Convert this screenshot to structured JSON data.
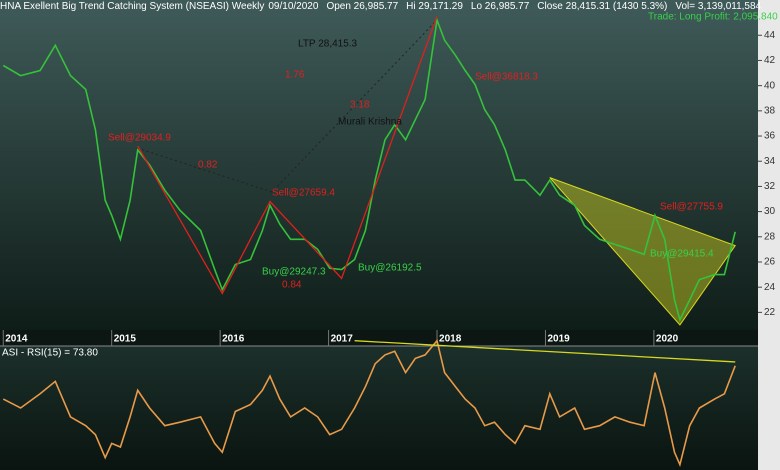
{
  "chart_data": [
    {
      "type": "line",
      "header": [
        "HNA Exellent Big Trend Catching System (NSEASI) Weekly",
        "09/10/2020",
        "Open 26,985.77",
        "Hi 29,171.29",
        "Lo 26,985.77",
        "Close 28,415.31 (1430 5.3%)",
        "Vol= 3,139,011,584"
      ],
      "x": [
        2014.0,
        2014.16,
        2014.34,
        2014.48,
        2014.62,
        2014.76,
        2014.85,
        2014.94,
        2015.0,
        2015.08,
        2015.17,
        2015.24,
        2015.35,
        2015.49,
        2015.63,
        2015.82,
        2015.95,
        2016.02,
        2016.14,
        2016.28,
        2016.39,
        2016.46,
        2016.55,
        2016.65,
        2016.78,
        2016.9,
        2017.01,
        2017.12,
        2017.24,
        2017.34,
        2017.43,
        2017.52,
        2017.61,
        2017.71,
        2017.8,
        2017.89,
        2018.0,
        2018.07,
        2018.17,
        2018.26,
        2018.35,
        2018.44,
        2018.53,
        2018.63,
        2018.72,
        2018.81,
        2018.95,
        2019.04,
        2019.13,
        2019.27,
        2019.36,
        2019.5,
        2019.64,
        2019.78,
        2019.91,
        2020.01,
        2020.1,
        2020.19,
        2020.24,
        2020.33,
        2020.42,
        2020.56,
        2020.65,
        2020.75
      ],
      "values": [
        41.6,
        40.8,
        41.2,
        43.2,
        40.8,
        39.7,
        36.5,
        30.9,
        29.7,
        27.8,
        30.9,
        34.9,
        33.7,
        31.7,
        30.1,
        28.5,
        25.4,
        23.8,
        25.8,
        26.2,
        28.5,
        30.5,
        29.0,
        27.8,
        27.8,
        27.0,
        25.5,
        25.4,
        26.2,
        28.5,
        32.5,
        35.7,
        36.9,
        35.7,
        37.3,
        38.9,
        45.2,
        43.6,
        42.4,
        41.2,
        40.1,
        38.1,
        36.9,
        34.9,
        32.5,
        32.5,
        31.3,
        32.5,
        31.3,
        30.5,
        28.9,
        27.8,
        27.4,
        27.0,
        26.6,
        29.7,
        27.8,
        23.0,
        21.4,
        23.0,
        24.6,
        25.0,
        25.0,
        28.4
      ],
      "color": "#35c23a",
      "zigzag": {
        "x": [
          2015.24,
          2016.02,
          2016.46,
          2017.12,
          2018.0
        ],
        "values": [
          35.2,
          23.5,
          30.8,
          24.7,
          45.5
        ],
        "color": "#e0201c"
      },
      "triangle": {
        "x": [
          2019.04,
          2020.75,
          2020.24
        ],
        "values": [
          32.7,
          27.3,
          21.0
        ],
        "color": "#d8d820"
      },
      "xlim": [
        2013.97,
        2020.96
      ],
      "xticks": [
        2014,
        2015,
        2016,
        2017,
        2018,
        2019,
        2020
      ],
      "ylim": [
        20.6,
        46.8
      ],
      "yticks": [
        22,
        24,
        26,
        28,
        30,
        32,
        34,
        36,
        38,
        40,
        42,
        44
      ],
      "annotations": [
        "Sell@29034.9",
        "Sell@27659.4",
        "Buy@29247.3",
        "Buy@26192.5",
        "Sell@36818.3",
        "Sell@27755.9",
        "Buy@29415.4",
        "1.76",
        "3.18",
        "0.82",
        "0.84",
        "Murali Krishna",
        "LTP 28,415.3",
        "Trade: Long Profit: 2,095.840"
      ]
    },
    {
      "type": "line",
      "title": "ASI - RSI(15) = 73.80",
      "x": [
        2014.0,
        2014.16,
        2014.34,
        2014.48,
        2014.62,
        2014.76,
        2014.85,
        2014.94,
        2015.0,
        2015.08,
        2015.17,
        2015.24,
        2015.35,
        2015.49,
        2015.63,
        2015.82,
        2015.95,
        2016.02,
        2016.14,
        2016.28,
        2016.39,
        2016.46,
        2016.55,
        2016.65,
        2016.78,
        2016.9,
        2017.01,
        2017.12,
        2017.24,
        2017.34,
        2017.43,
        2017.52,
        2017.61,
        2017.71,
        2017.8,
        2017.89,
        2018.0,
        2018.07,
        2018.17,
        2018.26,
        2018.35,
        2018.44,
        2018.53,
        2018.63,
        2018.72,
        2018.81,
        2018.95,
        2019.04,
        2019.13,
        2019.27,
        2019.36,
        2019.5,
        2019.64,
        2019.78,
        2019.91,
        2020.01,
        2020.1,
        2020.19,
        2020.24,
        2020.33,
        2020.42,
        2020.56,
        2020.65,
        2020.75
      ],
      "values": [
        55,
        50,
        58,
        65,
        45,
        40,
        35,
        22,
        30,
        28,
        45,
        60,
        50,
        40,
        42,
        45,
        30,
        25,
        48,
        52,
        60,
        68,
        55,
        45,
        50,
        45,
        35,
        38,
        50,
        62,
        75,
        80,
        82,
        70,
        78,
        80,
        88,
        70,
        62,
        55,
        50,
        40,
        42,
        35,
        30,
        40,
        38,
        58,
        45,
        50,
        38,
        40,
        45,
        42,
        40,
        70,
        50,
        25,
        18,
        40,
        50,
        55,
        58,
        73.8
      ],
      "color": "#e89a48",
      "trendline": {
        "x": [
          2017.24,
          2020.75
        ],
        "values": [
          88,
          76
        ],
        "color": "#d8d820"
      },
      "xlim": [
        2013.97,
        2020.96
      ],
      "ylim": [
        15,
        85
      ]
    }
  ]
}
